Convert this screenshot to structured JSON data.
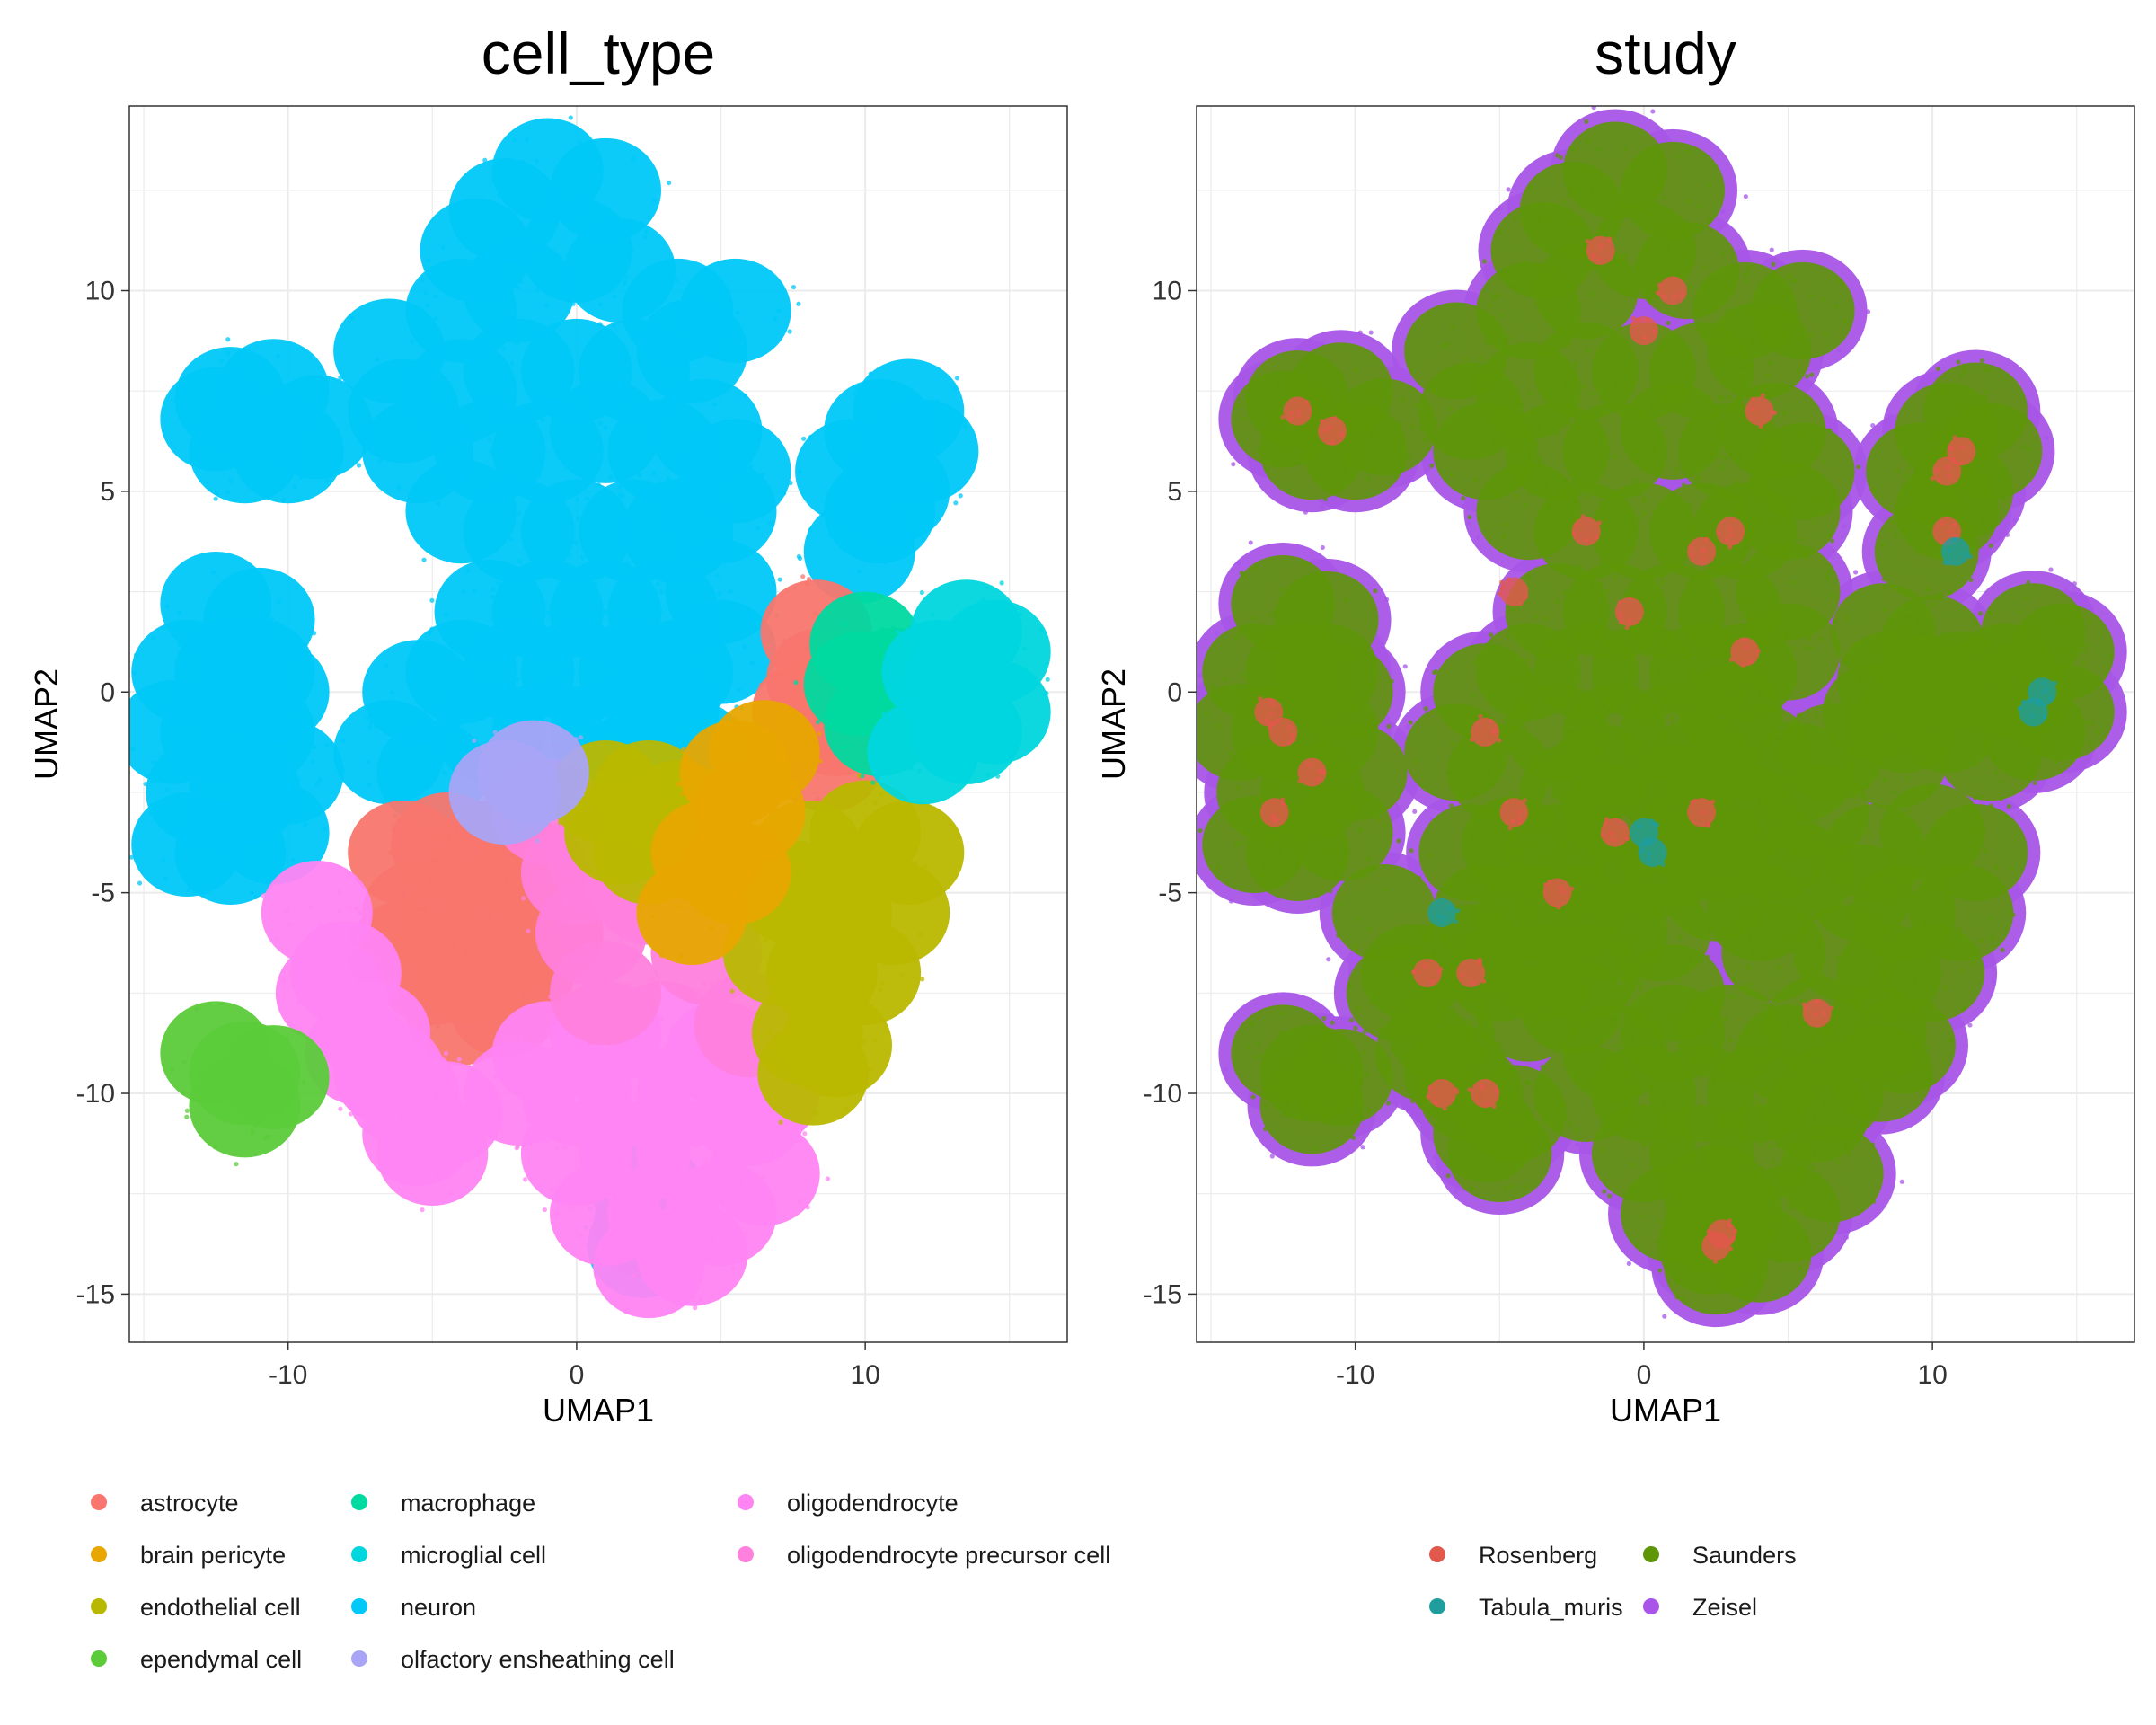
{
  "chart_data": [
    {
      "type": "scatter",
      "title": "cell_type",
      "xlabel": "UMAP1",
      "ylabel": "UMAP2",
      "xlim": [
        -15.5,
        17
      ],
      "ylim": [
        -16.2,
        14.6
      ],
      "xticks": [
        -10,
        0,
        10
      ],
      "xtick_labels": [
        "-10",
        "0",
        "10"
      ],
      "yticks": [
        10,
        5,
        0,
        -5,
        -10,
        -15
      ],
      "ytick_labels": [
        "10",
        "5",
        "0",
        "-5",
        "-10",
        "-15"
      ],
      "grid": true,
      "legend_position": "bottom",
      "legend": [
        {
          "name": "astrocyte",
          "color": "#F8766D"
        },
        {
          "name": "brain pericyte",
          "color": "#E7A600"
        },
        {
          "name": "endothelial cell",
          "color": "#B9B800"
        },
        {
          "name": "ependymal cell",
          "color": "#5BCB3A"
        },
        {
          "name": "macrophage",
          "color": "#00D9A0"
        },
        {
          "name": "microglial cell",
          "color": "#00D6DE"
        },
        {
          "name": "neuron",
          "color": "#00C8F8"
        },
        {
          "name": "olfactory ensheathing cell",
          "color": "#A9A4F5"
        },
        {
          "name": "oligodendrocyte",
          "color": "#FF84F3"
        },
        {
          "name": "oligodendrocyte precursor cell",
          "color": "#FF80DD"
        }
      ],
      "clusters": [
        {
          "label": "neuron",
          "points": [
            [
              -2.5,
              12
            ],
            [
              -1,
              13
            ],
            [
              1,
              12.5
            ],
            [
              1.5,
              10.5
            ],
            [
              -2,
              10
            ],
            [
              -3.5,
              11
            ],
            [
              0,
              11
            ],
            [
              -4,
              9.5
            ]
          ]
        },
        {
          "label": "neuron",
          "points": [
            [
              -6.5,
              8.5
            ],
            [
              -4,
              7.5
            ],
            [
              -2,
              8
            ],
            [
              0,
              8
            ],
            [
              2,
              8
            ],
            [
              4,
              8.5
            ],
            [
              5.5,
              9.5
            ],
            [
              3.5,
              9.5
            ],
            [
              -5.5,
              6
            ],
            [
              -3,
              6
            ],
            [
              -1,
              6
            ],
            [
              1,
              6.5
            ],
            [
              3,
              6
            ],
            [
              4.5,
              6.5
            ],
            [
              5.5,
              5.5
            ],
            [
              -6,
              7
            ]
          ]
        },
        {
          "label": "neuron",
          "points": [
            [
              -4,
              4.5
            ],
            [
              -2,
              4
            ],
            [
              0,
              4
            ],
            [
              2,
              4
            ],
            [
              3.5,
              4
            ],
            [
              5,
              4.5
            ],
            [
              -3,
              2
            ],
            [
              -1,
              2
            ],
            [
              1,
              2
            ],
            [
              3,
              2
            ],
            [
              5,
              2.5
            ],
            [
              -4,
              0.5
            ],
            [
              -2,
              0.5
            ],
            [
              0,
              0.5
            ],
            [
              2,
              0.5
            ],
            [
              3.5,
              0.5
            ],
            [
              5,
              1
            ],
            [
              -5.5,
              0
            ],
            [
              -3,
              -1
            ],
            [
              -1,
              -1
            ],
            [
              1,
              -1
            ],
            [
              3,
              -0.5
            ],
            [
              4,
              -1.5
            ],
            [
              -6.5,
              -1.5
            ],
            [
              -5,
              -2
            ],
            [
              2,
              -1.8
            ]
          ]
        },
        {
          "label": "neuron",
          "points": [
            [
              -12,
              7.3
            ],
            [
              -10.5,
              7.5
            ],
            [
              -9,
              6.6
            ],
            [
              -11.5,
              6
            ],
            [
              -10,
              6
            ],
            [
              -12.5,
              6.8
            ]
          ]
        },
        {
          "label": "neuron",
          "points": [
            [
              -12.5,
              2.2
            ],
            [
              -11,
              1.8
            ],
            [
              -13.5,
              0.5
            ],
            [
              -12,
              0.5
            ],
            [
              -10.5,
              0
            ],
            [
              -14,
              -1
            ],
            [
              -12.5,
              -1
            ],
            [
              -11,
              -1
            ],
            [
              -13,
              -2.5
            ],
            [
              -11.5,
              -2.5
            ],
            [
              -10,
              -2
            ],
            [
              -13.5,
              -3.8
            ],
            [
              -12,
              -4
            ],
            [
              -10.5,
              -3.5
            ],
            [
              -11,
              0.5
            ]
          ]
        },
        {
          "label": "neuron",
          "points": [
            [
              9.5,
              5.5
            ],
            [
              10.5,
              6.5
            ],
            [
              11.5,
              7
            ],
            [
              12,
              6
            ],
            [
              10.5,
              4.5
            ],
            [
              9.8,
              3.5
            ],
            [
              11,
              5
            ]
          ]
        },
        {
          "label": "neuron",
          "points": [
            [
              2.5,
              -12.5
            ],
            [
              2.5,
              -13.3
            ],
            [
              2.3,
              -13.8
            ]
          ]
        },
        {
          "label": "astrocyte",
          "points": [
            [
              -6,
              -4
            ],
            [
              -4.5,
              -3.8
            ],
            [
              -3,
              -4
            ],
            [
              -1.5,
              -4.5
            ],
            [
              -5.5,
              -5.5
            ],
            [
              -4,
              -5.5
            ],
            [
              -2.5,
              -5.5
            ],
            [
              -1,
              -6
            ],
            [
              -5,
              -7
            ],
            [
              -3.5,
              -7
            ],
            [
              -2,
              -7
            ],
            [
              -4,
              -8
            ],
            [
              -2.5,
              -7.8
            ],
            [
              -6,
              -6.5
            ]
          ]
        },
        {
          "label": "astrocyte",
          "points": [
            [
              8,
              -0.5
            ],
            [
              8.5,
              0.3
            ],
            [
              9,
              -0.8
            ],
            [
              8.7,
              -1.7
            ],
            [
              8.3,
              1.5
            ]
          ]
        },
        {
          "label": "oligodendrocyte",
          "points": [
            [
              -1,
              -9
            ],
            [
              1,
              -8.5
            ],
            [
              3,
              -8.5
            ],
            [
              5,
              -9
            ],
            [
              6.5,
              -10
            ],
            [
              -2,
              -10
            ],
            [
              0,
              -10
            ],
            [
              2,
              -10
            ],
            [
              4,
              -10
            ],
            [
              6,
              -10.5
            ],
            [
              0,
              -11.5
            ],
            [
              2,
              -11.5
            ],
            [
              4,
              -11.5
            ],
            [
              6.5,
              -12
            ],
            [
              1,
              -13
            ],
            [
              3,
              -13
            ],
            [
              5,
              -13
            ],
            [
              2.5,
              -14.3
            ],
            [
              4,
              -14
            ]
          ]
        },
        {
          "label": "oligodendrocyte",
          "points": [
            [
              -9,
              -5.5
            ],
            [
              -8,
              -7
            ],
            [
              -7,
              -8.5
            ],
            [
              -6,
              -10
            ],
            [
              -5,
              -11.5
            ],
            [
              -4.5,
              -10.5
            ],
            [
              -8.5,
              -7.5
            ],
            [
              -6.5,
              -9.5
            ],
            [
              -7.5,
              -9
            ],
            [
              -5.5,
              -11
            ]
          ]
        },
        {
          "label": "oligodendrocyte precursor cell",
          "points": [
            [
              -1,
              -3
            ],
            [
              0,
              -4.5
            ],
            [
              1,
              -4.2
            ],
            [
              0.5,
              -6
            ],
            [
              1,
              -7.5
            ],
            [
              2.5,
              -5
            ],
            [
              4.5,
              -6.5
            ],
            [
              6,
              -8.3
            ]
          ]
        },
        {
          "label": "endothelial cell",
          "points": [
            [
              8,
              -4
            ],
            [
              10,
              -3.5
            ],
            [
              11.5,
              -4
            ],
            [
              7.5,
              -5
            ],
            [
              9,
              -5.5
            ],
            [
              11,
              -5.5
            ],
            [
              7,
              -6.5
            ],
            [
              8.5,
              -7
            ],
            [
              10,
              -7
            ],
            [
              8,
              -8.5
            ],
            [
              9,
              -8.8
            ],
            [
              8.2,
              -9.5
            ]
          ]
        },
        {
          "label": "endothelial cell",
          "points": [
            [
              1,
              -2.5
            ],
            [
              2.5,
              -2.5
            ],
            [
              3.5,
              -3
            ],
            [
              1.5,
              -3.5
            ],
            [
              2.5,
              -4
            ]
          ]
        },
        {
          "label": "brain pericyte",
          "points": [
            [
              5.5,
              -2
            ],
            [
              6.5,
              -1.5
            ],
            [
              6,
              -3
            ],
            [
              4.5,
              -4
            ],
            [
              5.5,
              -4.5
            ],
            [
              4,
              -5.5
            ]
          ]
        },
        {
          "label": "macrophage",
          "points": [
            [
              10,
              1.2
            ],
            [
              11,
              0.3
            ],
            [
              10.5,
              -0.8
            ],
            [
              9.8,
              0.2
            ]
          ]
        },
        {
          "label": "microglial cell",
          "points": [
            [
              12.5,
              0.5
            ],
            [
              13.5,
              1.5
            ],
            [
              14.5,
              1
            ],
            [
              12,
              -1.5
            ],
            [
              13.5,
              -1
            ],
            [
              14.5,
              -0.5
            ],
            [
              13,
              0
            ]
          ]
        },
        {
          "label": "ependymal cell",
          "points": [
            [
              -12.5,
              -9
            ],
            [
              -11.5,
              -9.5
            ],
            [
              -10.5,
              -9.6
            ],
            [
              -11.5,
              -10.3
            ]
          ]
        },
        {
          "label": "olfactory ensheathing cell",
          "points": [
            [
              -1.5,
              -2
            ],
            [
              -2.5,
              -2.5
            ]
          ]
        }
      ]
    },
    {
      "type": "scatter",
      "title": "study",
      "xlabel": "UMAP1",
      "ylabel": "UMAP2",
      "xlim": [
        -15.5,
        17
      ],
      "ylim": [
        -16.2,
        14.6
      ],
      "xticks": [
        -10,
        0,
        10
      ],
      "xtick_labels": [
        "-10",
        "0",
        "10"
      ],
      "yticks": [
        10,
        5,
        0,
        -5,
        -10,
        -15
      ],
      "ytick_labels": [
        "10",
        "5",
        "0",
        "-5",
        "-10",
        "-15"
      ],
      "grid": true,
      "legend_position": "bottom",
      "legend": [
        {
          "name": "Rosenberg",
          "color": "#E2584C"
        },
        {
          "name": "Tabula_muris",
          "color": "#1F9E9E"
        },
        {
          "name": "Saunders",
          "color": "#5E9608"
        },
        {
          "name": "Zeisel",
          "color": "#A855E8"
        }
      ],
      "underlay": "Zeisel",
      "base": "Saunders",
      "accents": [
        {
          "label": "Rosenberg",
          "points": [
            [
              -12.5,
              -1
            ],
            [
              -13,
              -0.5
            ],
            [
              -11.5,
              -2
            ],
            [
              -12.8,
              -3
            ],
            [
              -10.8,
              6.5
            ],
            [
              -12,
              7
            ],
            [
              -4.5,
              -3
            ],
            [
              -3,
              -5
            ],
            [
              -6,
              -7
            ],
            [
              -7.5,
              -7
            ],
            [
              -5.5,
              -10
            ],
            [
              -2,
              4
            ],
            [
              -0.5,
              2
            ],
            [
              2,
              3.5
            ],
            [
              3,
              4
            ],
            [
              3.5,
              1
            ],
            [
              10.5,
              5.5
            ],
            [
              11,
              6
            ],
            [
              10.5,
              4
            ],
            [
              6,
              -8
            ],
            [
              2.5,
              -13.8
            ],
            [
              2.7,
              -13.5
            ],
            [
              0,
              9
            ],
            [
              1,
              10
            ],
            [
              -1.5,
              11
            ],
            [
              4,
              7
            ],
            [
              -4.5,
              2.5
            ],
            [
              -5.5,
              -1
            ],
            [
              -1,
              -3.5
            ],
            [
              2,
              -3
            ],
            [
              -7,
              -10
            ]
          ]
        },
        {
          "label": "Tabula_muris",
          "points": [
            [
              0,
              -3.5
            ],
            [
              0.3,
              -4
            ],
            [
              13.5,
              -0.5
            ],
            [
              13.8,
              0
            ],
            [
              10.8,
              3.5
            ],
            [
              -7,
              -5.5
            ]
          ]
        }
      ]
    }
  ]
}
